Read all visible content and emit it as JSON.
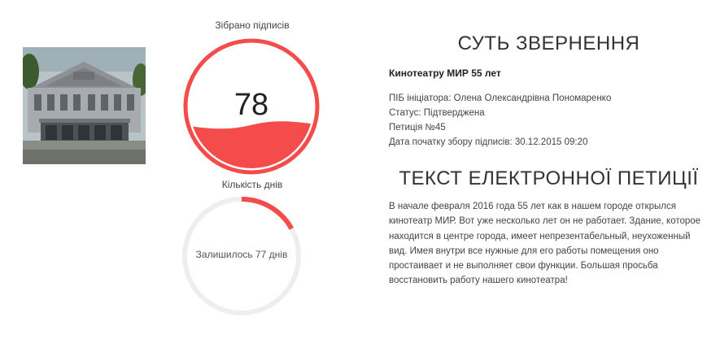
{
  "signatures": {
    "label": "Зібрано підписів",
    "count": "78",
    "fill_fraction": 0.35,
    "color": "#f44b4b"
  },
  "days": {
    "label": "Кількість днів",
    "remaining_text": "Залишилось 77 днів",
    "progress_fraction": 0.17,
    "color": "#f44b4b",
    "track_color": "#eeeeee"
  },
  "essence": {
    "heading": "СУТЬ ЗВЕРНЕННЯ",
    "title": "Кинотеатру МИР 55 лет",
    "initiator": "ПІБ ініціатора: Олена Олександрівна Пономаренко",
    "status": "Статус: Підтверджена",
    "petition_number": "Петиція №45",
    "start_date": "Дата початку збору підписів: 30.12.2015 09:20"
  },
  "petition_text": {
    "heading": "ТЕКСТ ЕЛЕКТРОННОЇ ПЕТИЦІЇ",
    "body": "В начале февраля 2016 года 55 лет как в нашем городе открылся кинотеатр МИР. Вот уже несколько лет он не работает. Здание, которое находится в центре города, имеет непрезентабельный, неухоженный вид. Имея внутри все нужные для его работы помещения оно простаивает и не выполняет свои функции. Большая просьба восстановить работу нашего кинотеатра!"
  }
}
